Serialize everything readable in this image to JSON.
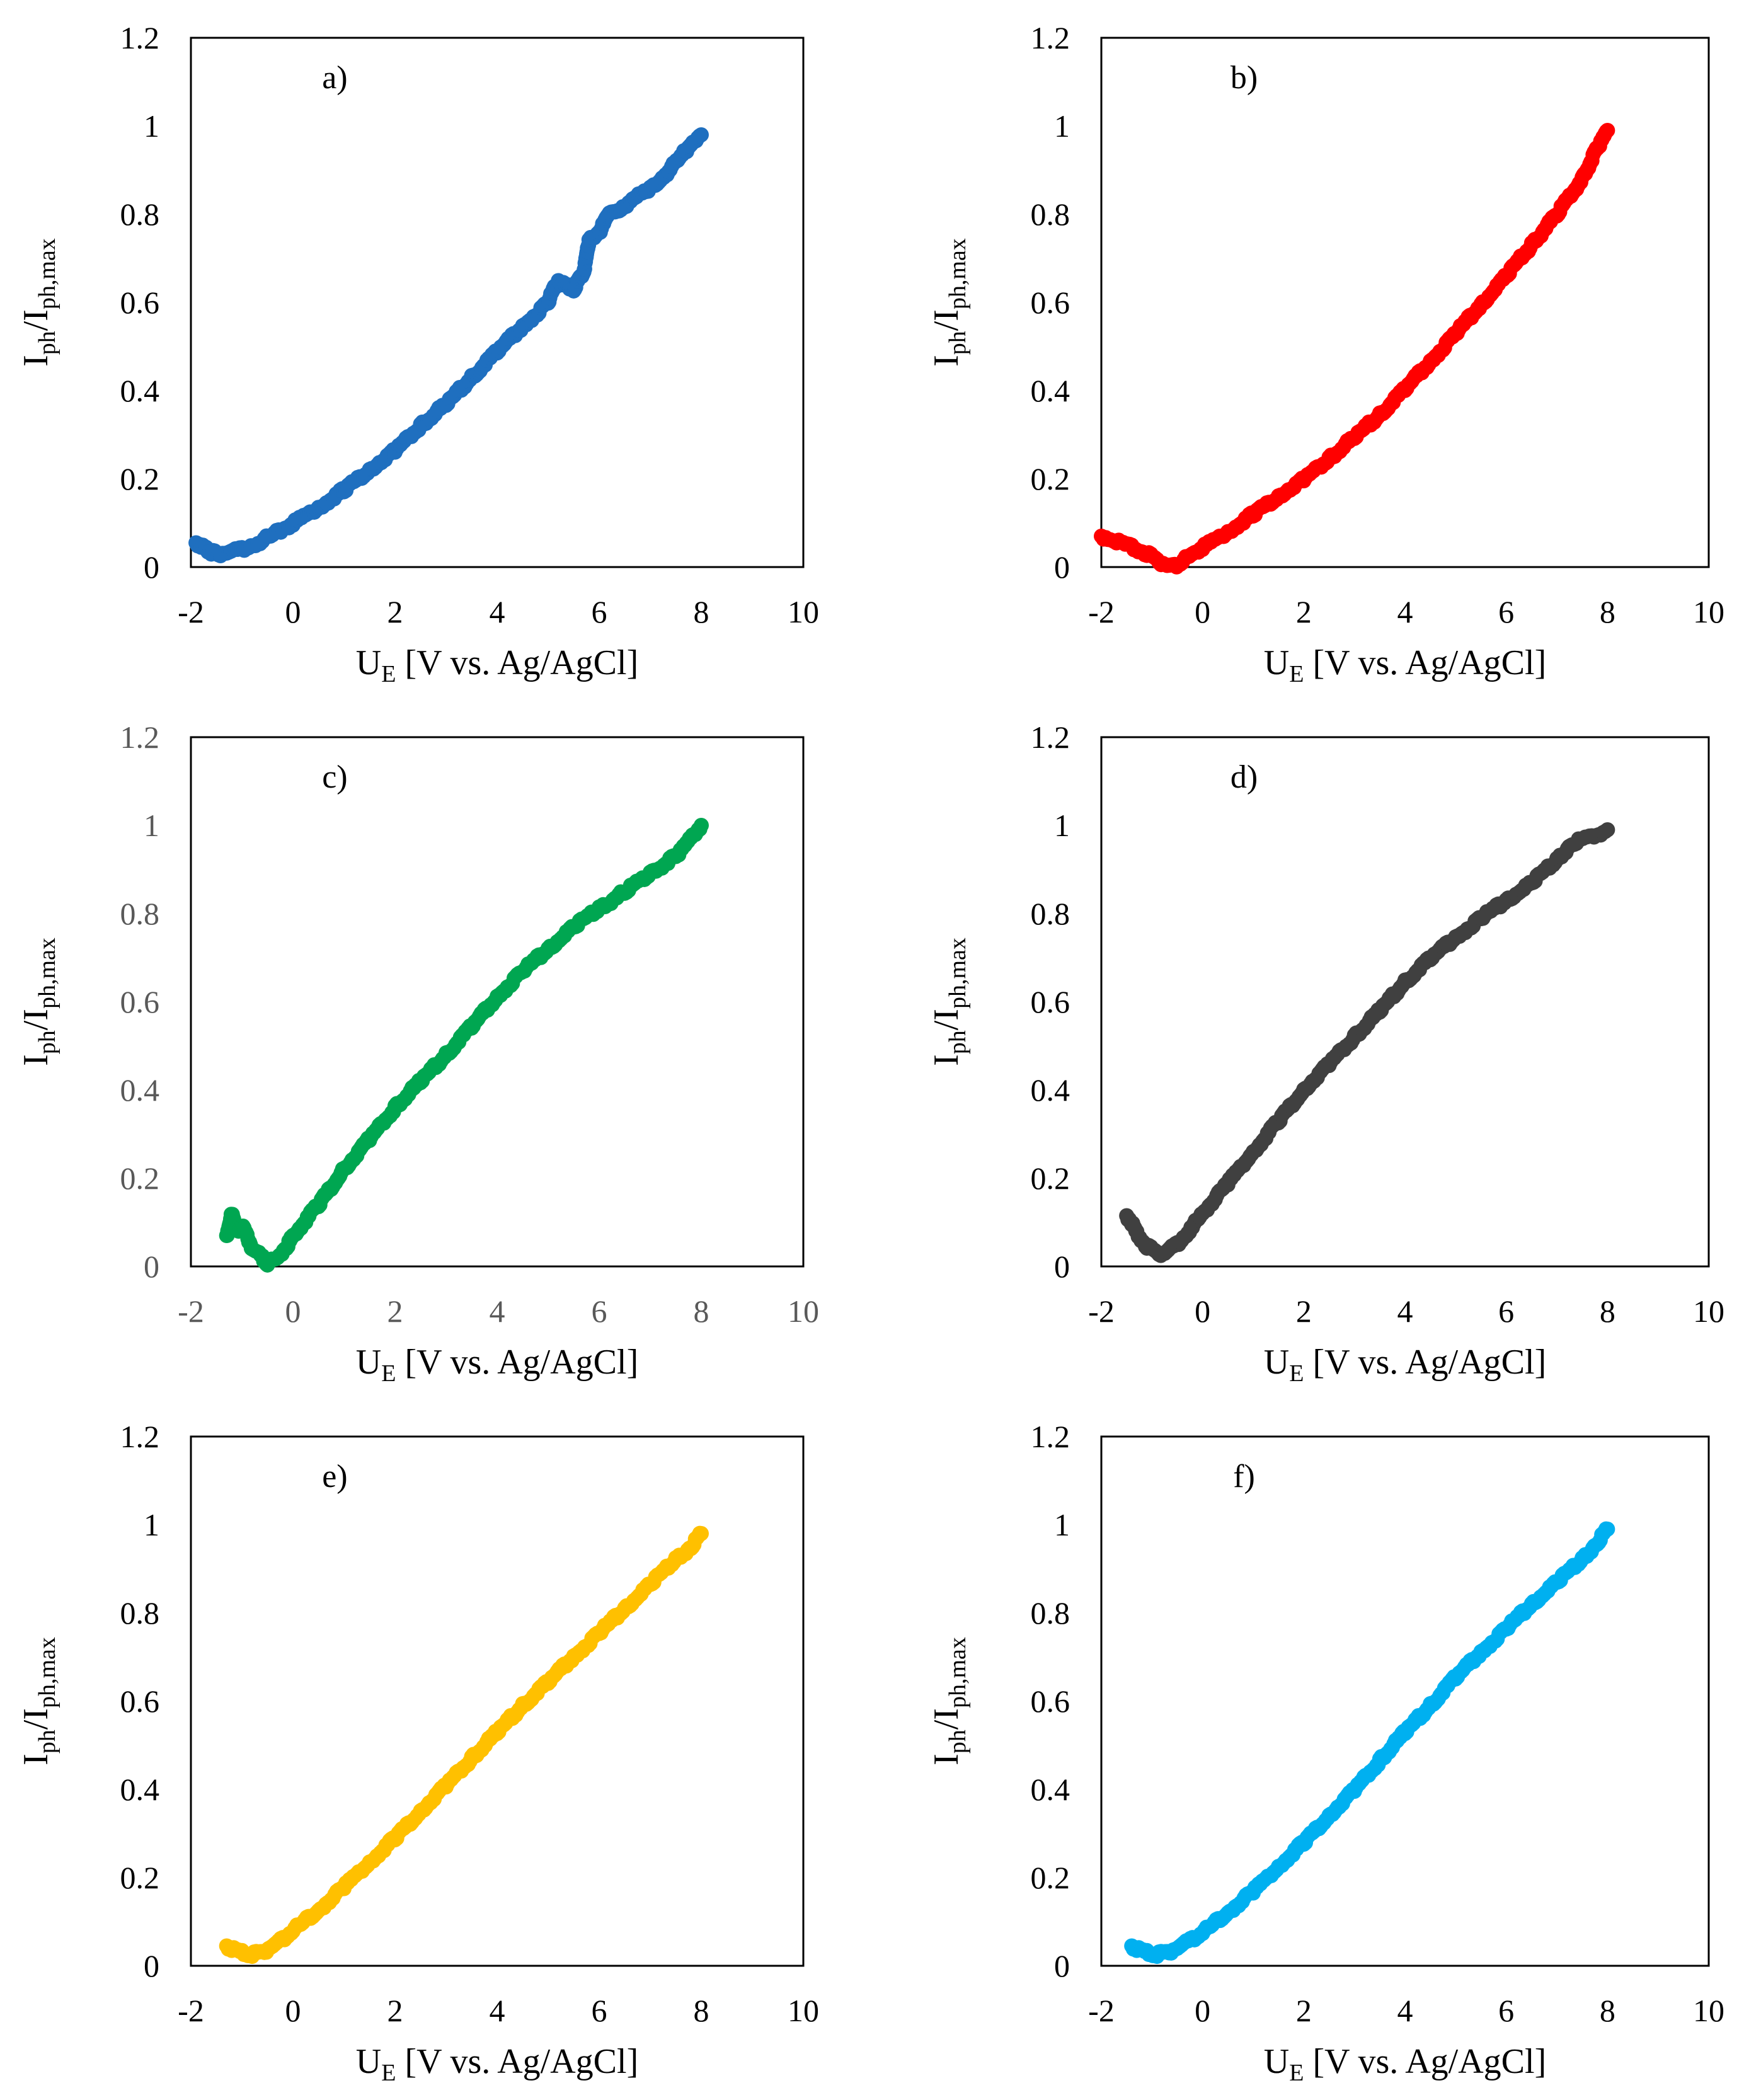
{
  "figure": {
    "x_ticks": [
      "-2",
      "0",
      "2",
      "4",
      "6",
      "8",
      "10"
    ],
    "y_ticks": [
      "0",
      "0.2",
      "0.4",
      "0.6",
      "0.8",
      "1",
      "1.2"
    ]
  },
  "chart_data": [
    {
      "type": "scatter",
      "panel_label": "a)",
      "color": "#1F6FBF",
      "xlabel_main": "U",
      "xlabel_sub": "E",
      "xlabel_rest": " [V vs. Ag/AgCl]",
      "ylabel_main1": "I",
      "ylabel_sub1": "ph",
      "ylabel_main2": "/I",
      "ylabel_sub2": "ph,max",
      "xlim": [
        -2,
        10
      ],
      "ylim": [
        0,
        1.2
      ],
      "tick_style": "black",
      "series": [
        {
          "name": "a",
          "points": [
            [
              -1.9,
              0.055
            ],
            [
              -1.8,
              0.05
            ],
            [
              -1.7,
              0.04
            ],
            [
              -1.6,
              0.033
            ],
            [
              -1.5,
              0.03
            ],
            [
              -1.3,
              0.032
            ],
            [
              -1.0,
              0.04
            ],
            [
              -0.6,
              0.06
            ],
            [
              -0.2,
              0.085
            ],
            [
              0,
              0.1
            ],
            [
              0.5,
              0.135
            ],
            [
              1,
              0.175
            ],
            [
              1.5,
              0.22
            ],
            [
              2,
              0.265
            ],
            [
              2.5,
              0.32
            ],
            [
              3,
              0.37
            ],
            [
              3.5,
              0.43
            ],
            [
              4,
              0.49
            ],
            [
              4.5,
              0.545
            ],
            [
              5,
              0.6
            ],
            [
              5.1,
              0.63
            ],
            [
              5.2,
              0.65
            ],
            [
              5.3,
              0.64
            ],
            [
              5.5,
              0.63
            ],
            [
              5.6,
              0.65
            ],
            [
              5.7,
              0.67
            ],
            [
              5.8,
              0.74
            ],
            [
              6,
              0.76
            ],
            [
              6.2,
              0.8
            ],
            [
              6.5,
              0.82
            ],
            [
              7,
              0.86
            ],
            [
              7.3,
              0.89
            ],
            [
              7.6,
              0.93
            ],
            [
              7.8,
              0.96
            ],
            [
              8,
              0.98
            ]
          ]
        }
      ]
    },
    {
      "type": "scatter",
      "panel_label": "b)",
      "color": "#FF0000",
      "xlabel_main": "U",
      "xlabel_sub": "E",
      "xlabel_rest": " [V vs. Ag/AgCl]",
      "ylabel_main1": "I",
      "ylabel_sub1": "ph",
      "ylabel_main2": "/I",
      "ylabel_sub2": "ph,max",
      "xlim": [
        -2,
        10
      ],
      "ylim": [
        0,
        1.2
      ],
      "tick_style": "black",
      "series": [
        {
          "name": "b",
          "points": [
            [
              -2,
              0.07
            ],
            [
              -1.7,
              0.06
            ],
            [
              -1.4,
              0.045
            ],
            [
              -1.1,
              0.03
            ],
            [
              -0.9,
              0.015
            ],
            [
              -0.7,
              0.004
            ],
            [
              -0.55,
              0.002
            ],
            [
              -0.4,
              0.012
            ],
            [
              -0.2,
              0.03
            ],
            [
              0,
              0.045
            ],
            [
              0.5,
              0.08
            ],
            [
              1,
              0.12
            ],
            [
              1.5,
              0.16
            ],
            [
              2,
              0.2
            ],
            [
              2.5,
              0.245
            ],
            [
              3,
              0.295
            ],
            [
              3.5,
              0.345
            ],
            [
              4,
              0.405
            ],
            [
              4.5,
              0.465
            ],
            [
              5,
              0.53
            ],
            [
              5.5,
              0.595
            ],
            [
              6,
              0.66
            ],
            [
              6.5,
              0.73
            ],
            [
              7,
              0.8
            ],
            [
              7.5,
              0.88
            ],
            [
              7.8,
              0.95
            ],
            [
              8,
              0.99
            ]
          ]
        }
      ]
    },
    {
      "type": "scatter",
      "panel_label": "c)",
      "color": "#00A651",
      "xlabel_main": "U",
      "xlabel_sub": "E",
      "xlabel_rest": " [V vs. Ag/AgCl]",
      "ylabel_main1": "I",
      "ylabel_sub1": "ph",
      "ylabel_main2": "/I",
      "ylabel_sub2": "ph,max",
      "xlim": [
        -2,
        10
      ],
      "ylim": [
        0,
        1.2
      ],
      "tick_style": "gray",
      "series": [
        {
          "name": "c",
          "points": [
            [
              -1.3,
              0.07
            ],
            [
              -1.2,
              0.12
            ],
            [
              -1.1,
              0.08
            ],
            [
              -1.0,
              0.09
            ],
            [
              -0.9,
              0.07
            ],
            [
              -0.8,
              0.04
            ],
            [
              -0.6,
              0.02
            ],
            [
              -0.5,
              0.005
            ],
            [
              -0.3,
              0.02
            ],
            [
              -0.1,
              0.05
            ],
            [
              0,
              0.07
            ],
            [
              0.5,
              0.14
            ],
            [
              1,
              0.22
            ],
            [
              1.5,
              0.29
            ],
            [
              2,
              0.36
            ],
            [
              2.5,
              0.42
            ],
            [
              3,
              0.48
            ],
            [
              3.5,
              0.545
            ],
            [
              4,
              0.61
            ],
            [
              4.5,
              0.67
            ],
            [
              5,
              0.72
            ],
            [
              5.5,
              0.77
            ],
            [
              6,
              0.81
            ],
            [
              6.5,
              0.85
            ],
            [
              7,
              0.89
            ],
            [
              7.5,
              0.93
            ],
            [
              7.8,
              0.97
            ],
            [
              8,
              1.0
            ]
          ]
        }
      ]
    },
    {
      "type": "scatter",
      "panel_label": "d)",
      "color": "#404040",
      "xlabel_main": "U",
      "xlabel_sub": "E",
      "xlabel_rest": " [V vs. Ag/AgCl]",
      "ylabel_main1": "I",
      "ylabel_sub1": "ph",
      "ylabel_main2": "/I",
      "ylabel_sub2": "ph,max",
      "xlim": [
        -2,
        10
      ],
      "ylim": [
        0,
        1.2
      ],
      "tick_style": "black",
      "series": [
        {
          "name": "d",
          "points": [
            [
              -1.5,
              0.115
            ],
            [
              -1.4,
              0.1
            ],
            [
              -1.3,
              0.075
            ],
            [
              -1.1,
              0.045
            ],
            [
              -0.9,
              0.03
            ],
            [
              -0.75,
              0.03
            ],
            [
              -0.5,
              0.05
            ],
            [
              -0.2,
              0.09
            ],
            [
              0,
              0.12
            ],
            [
              0.5,
              0.19
            ],
            [
              1,
              0.26
            ],
            [
              1.5,
              0.33
            ],
            [
              2,
              0.4
            ],
            [
              2.5,
              0.46
            ],
            [
              3,
              0.52
            ],
            [
              3.5,
              0.58
            ],
            [
              4,
              0.645
            ],
            [
              4.5,
              0.7
            ],
            [
              5,
              0.745
            ],
            [
              5.5,
              0.79
            ],
            [
              6,
              0.83
            ],
            [
              6.5,
              0.87
            ],
            [
              7,
              0.92
            ],
            [
              7.3,
              0.96
            ],
            [
              7.6,
              0.97
            ],
            [
              8,
              0.99
            ]
          ]
        }
      ]
    },
    {
      "type": "scatter",
      "panel_label": "e)",
      "color": "#FFC000",
      "xlabel_main": "U",
      "xlabel_sub": "E",
      "xlabel_rest": " [V vs. Ag/AgCl]",
      "ylabel_main1": "I",
      "ylabel_sub1": "ph",
      "ylabel_main2": "/I",
      "ylabel_sub2": "ph,max",
      "xlim": [
        -2,
        10
      ],
      "ylim": [
        0,
        1.2
      ],
      "tick_style": "black",
      "series": [
        {
          "name": "e",
          "points": [
            [
              -1.3,
              0.045
            ],
            [
              -1.2,
              0.04
            ],
            [
              -1.0,
              0.03
            ],
            [
              -0.8,
              0.025
            ],
            [
              -0.6,
              0.03
            ],
            [
              -0.4,
              0.045
            ],
            [
              -0.2,
              0.06
            ],
            [
              0,
              0.08
            ],
            [
              0.5,
              0.125
            ],
            [
              1,
              0.18
            ],
            [
              1.5,
              0.235
            ],
            [
              2,
              0.29
            ],
            [
              2.5,
              0.35
            ],
            [
              3,
              0.41
            ],
            [
              3.5,
              0.47
            ],
            [
              4,
              0.53
            ],
            [
              4.5,
              0.59
            ],
            [
              5,
              0.645
            ],
            [
              5.5,
              0.7
            ],
            [
              6,
              0.755
            ],
            [
              6.5,
              0.81
            ],
            [
              7,
              0.865
            ],
            [
              7.5,
              0.92
            ],
            [
              7.8,
              0.95
            ],
            [
              8,
              0.98
            ]
          ]
        }
      ]
    },
    {
      "type": "scatter",
      "panel_label": "f)",
      "color": "#00B0F0",
      "xlabel_main": "U",
      "xlabel_sub": "E",
      "xlabel_rest": " [V vs. Ag/AgCl]",
      "ylabel_main1": "I",
      "ylabel_sub1": "ph",
      "ylabel_main2": "/I",
      "ylabel_sub2": "ph,max",
      "xlim": [
        -2,
        10
      ],
      "ylim": [
        0,
        1.2
      ],
      "tick_style": "black",
      "series": [
        {
          "name": "f",
          "points": [
            [
              -1.4,
              0.045
            ],
            [
              -1.3,
              0.04
            ],
            [
              -1.1,
              0.03
            ],
            [
              -0.9,
              0.025
            ],
            [
              -0.7,
              0.03
            ],
            [
              -0.5,
              0.04
            ],
            [
              -0.2,
              0.06
            ],
            [
              0,
              0.075
            ],
            [
              0.5,
              0.12
            ],
            [
              1,
              0.17
            ],
            [
              1.5,
              0.225
            ],
            [
              2,
              0.28
            ],
            [
              2.5,
              0.34
            ],
            [
              3,
              0.4
            ],
            [
              3.5,
              0.465
            ],
            [
              4,
              0.53
            ],
            [
              4.5,
              0.59
            ],
            [
              5,
              0.655
            ],
            [
              5.5,
              0.71
            ],
            [
              6,
              0.765
            ],
            [
              6.5,
              0.82
            ],
            [
              7,
              0.87
            ],
            [
              7.5,
              0.92
            ],
            [
              7.8,
              0.96
            ],
            [
              8,
              0.99
            ]
          ]
        }
      ]
    }
  ]
}
